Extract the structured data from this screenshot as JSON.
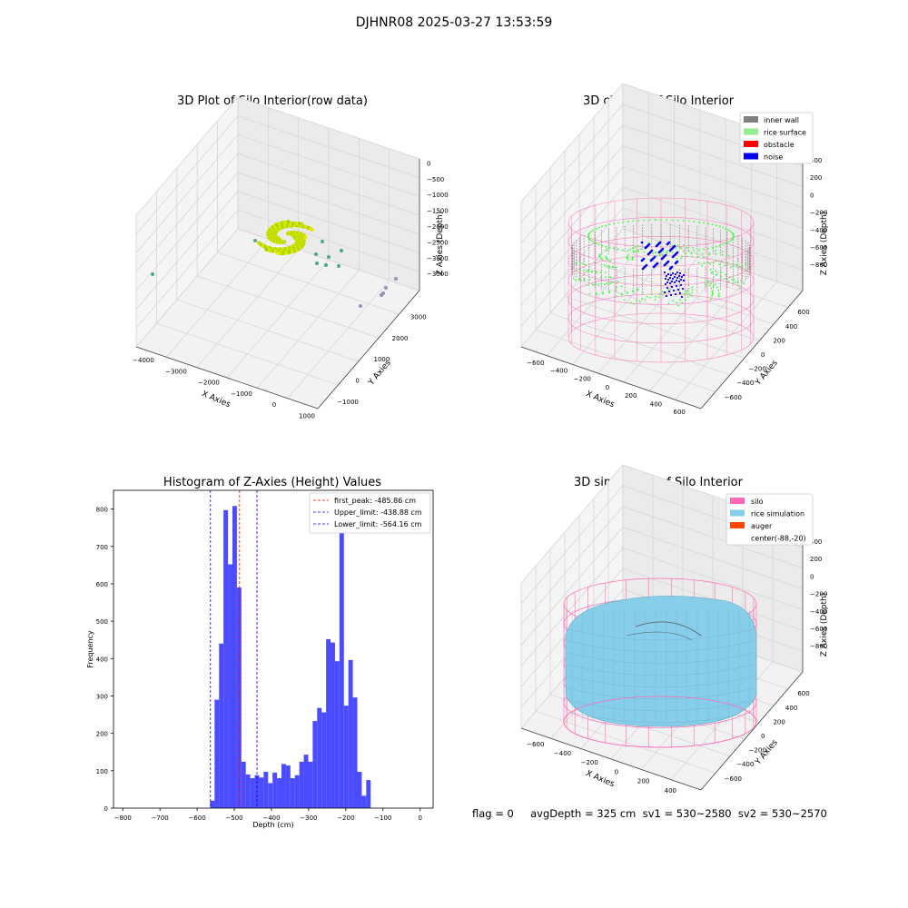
{
  "suptitle": "DJHNR08 2025-03-27 13:53:59",
  "colors": {
    "yellow": "#e8e800",
    "green": "#32ff32",
    "blue": "#0000ee",
    "wall_gray": "#808080",
    "pink": "#ff69b4",
    "sky": "#87ceeb",
    "hist_bar": "#4b4bff",
    "teal": "#4aa88a",
    "purple": "#9a8fb5"
  },
  "plot1": {
    "title": "3D Plot of Silo Interior(row data)",
    "xlabel": "X Axies",
    "ylabel": "Y Axies",
    "zlabel": "Z Axies (Depth)",
    "xticks": [
      "−4000",
      "−3000",
      "−2000",
      "−1000",
      "0",
      "1000"
    ],
    "yticks": [
      "−1000",
      "0",
      "1000",
      "2000",
      "3000"
    ],
    "zticks": [
      "0",
      "−500",
      "−1000",
      "−1500",
      "−2000",
      "−2500",
      "−3000",
      "−3500"
    ]
  },
  "plot2": {
    "title": "3D classify of Silo Interior",
    "xlabel": "X Axies",
    "ylabel": "Y Axies",
    "zlabel": "Z Axies (Depth)",
    "xticks": [
      "−600",
      "−400",
      "−200",
      "0",
      "200",
      "400",
      "600"
    ],
    "yticks": [
      "−600",
      "−400",
      "−200",
      "0",
      "200",
      "400",
      "600"
    ],
    "zticks": [
      "400",
      "200",
      "0",
      "−200",
      "−400",
      "−600",
      "−800"
    ],
    "legend": [
      "inner wall",
      "rice surface",
      "obstacle",
      "noise"
    ]
  },
  "plot4": {
    "title": "3D simulation of Silo Interior",
    "xlabel": "X Axies",
    "ylabel": "Y Axies",
    "zlabel": "Z Axies (Depth)",
    "xticks": [
      "−600",
      "−400",
      "−200",
      "0",
      "200",
      "400"
    ],
    "yticks": [
      "−600",
      "−400",
      "−200",
      "0",
      "200",
      "400",
      "600"
    ],
    "zticks": [
      "400",
      "200",
      "0",
      "−200",
      "−400",
      "−600",
      "−800"
    ],
    "legend": [
      "silo",
      "rice simulation",
      "auger",
      "center(-88,-20)"
    ],
    "footer": "flag = 0     avgDepth = 325 cm  sv1 = 530~2580  sv2 = 530~2570"
  },
  "chart_data": [
    {
      "type": "histogram",
      "title": "Histogram of Z-Axies (Height) Values",
      "xlabel": "Depth (cm)",
      "ylabel": "Frequency",
      "xlim": [
        -825,
        35
      ],
      "ylim": [
        0,
        850
      ],
      "xticks": [
        -800,
        -700,
        -600,
        -500,
        -400,
        -300,
        -200,
        -100,
        0
      ],
      "yticks": [
        0,
        100,
        200,
        300,
        400,
        500,
        600,
        700,
        800
      ],
      "bins": [
        {
          "x0": -565,
          "x1": -553,
          "count": 20
        },
        {
          "x0": -553,
          "x1": -541,
          "count": 290
        },
        {
          "x0": -541,
          "x1": -529,
          "count": 440
        },
        {
          "x0": -529,
          "x1": -517,
          "count": 797
        },
        {
          "x0": -517,
          "x1": -505,
          "count": 652
        },
        {
          "x0": -505,
          "x1": -493,
          "count": 808
        },
        {
          "x0": -493,
          "x1": -481,
          "count": 590
        },
        {
          "x0": -481,
          "x1": -469,
          "count": 124
        },
        {
          "x0": -469,
          "x1": -457,
          "count": 90
        },
        {
          "x0": -457,
          "x1": -445,
          "count": 80
        },
        {
          "x0": -445,
          "x1": -433,
          "count": 88
        },
        {
          "x0": -433,
          "x1": -421,
          "count": 82
        },
        {
          "x0": -421,
          "x1": -409,
          "count": 97
        },
        {
          "x0": -409,
          "x1": -397,
          "count": 67
        },
        {
          "x0": -397,
          "x1": -385,
          "count": 95
        },
        {
          "x0": -385,
          "x1": -373,
          "count": 80
        },
        {
          "x0": -373,
          "x1": -361,
          "count": 118
        },
        {
          "x0": -361,
          "x1": -349,
          "count": 114
        },
        {
          "x0": -349,
          "x1": -337,
          "count": 80
        },
        {
          "x0": -337,
          "x1": -325,
          "count": 88
        },
        {
          "x0": -325,
          "x1": -313,
          "count": 124
        },
        {
          "x0": -313,
          "x1": -301,
          "count": 143
        },
        {
          "x0": -301,
          "x1": -289,
          "count": 124
        },
        {
          "x0": -289,
          "x1": -277,
          "count": 233
        },
        {
          "x0": -277,
          "x1": -265,
          "count": 268
        },
        {
          "x0": -265,
          "x1": -253,
          "count": 256
        },
        {
          "x0": -253,
          "x1": -241,
          "count": 452
        },
        {
          "x0": -241,
          "x1": -229,
          "count": 443
        },
        {
          "x0": -229,
          "x1": -217,
          "count": 393
        },
        {
          "x0": -217,
          "x1": -205,
          "count": 740
        },
        {
          "x0": -205,
          "x1": -193,
          "count": 274
        },
        {
          "x0": -193,
          "x1": -181,
          "count": 396
        },
        {
          "x0": -181,
          "x1": -169,
          "count": 296
        },
        {
          "x0": -169,
          "x1": -157,
          "count": 97
        },
        {
          "x0": -157,
          "x1": -145,
          "count": 33
        },
        {
          "x0": -145,
          "x1": -133,
          "count": 75
        }
      ],
      "vlines": [
        {
          "x": -485.86,
          "color": "#ff0000",
          "label": "first_peak: -485.86 cm"
        },
        {
          "x": -438.88,
          "color": "#0000ff",
          "label": "Upper_limit: -438.88 cm"
        },
        {
          "x": -564.16,
          "color": "#0000ff",
          "label": "Lower_limit: -564.16 cm"
        }
      ],
      "legend_position": "upper right"
    }
  ]
}
